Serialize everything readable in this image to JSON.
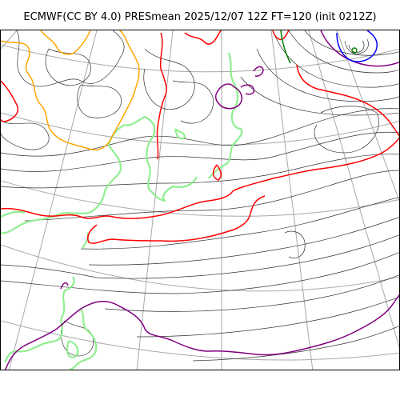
{
  "title": "ECMWF(CC BY 4.0) PRESmean 2025/12/07 12Z FT=120 (init 0212Z)",
  "colors": {
    "isobar": "#333333",
    "graticule": "#a8a8a8",
    "coastline": "#90ee90",
    "contour_red": "#ff0000",
    "contour_orange": "#ffa500",
    "contour_purple": "#800080",
    "contour_blue": "#0000ff",
    "contour_green": "#008000"
  },
  "map": {
    "projection": "polar-stereographic",
    "features": [
      "isobars",
      "coastlines",
      "graticule",
      "low-pressure-center"
    ]
  }
}
